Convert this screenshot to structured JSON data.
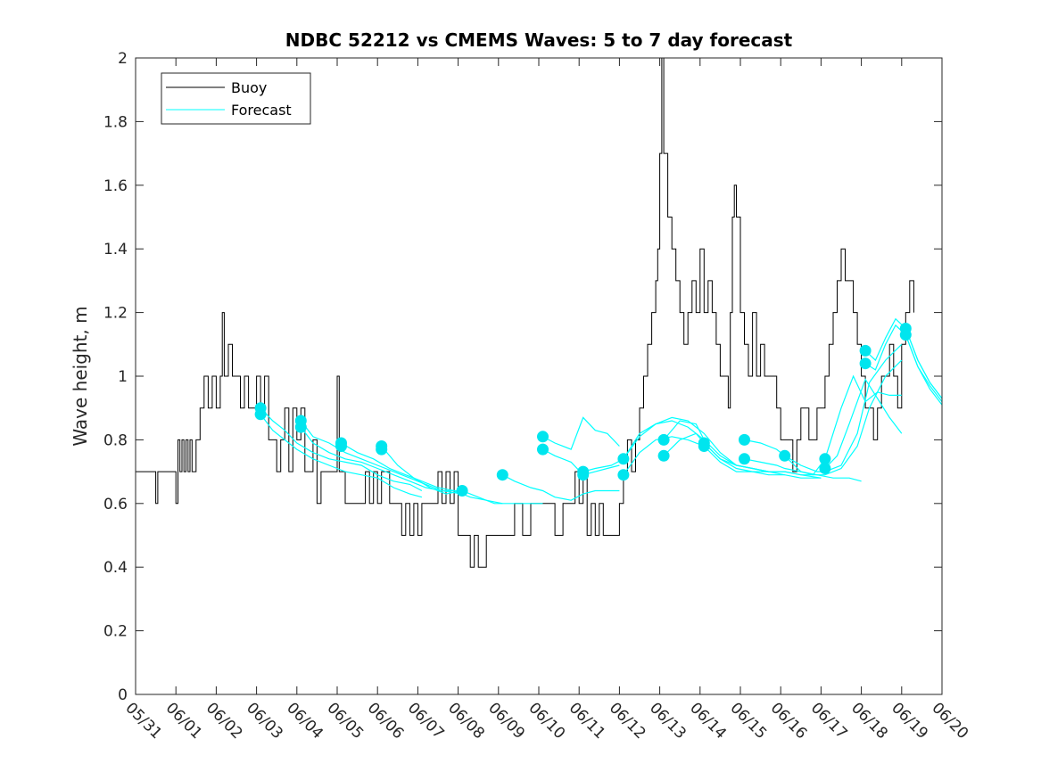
{
  "chart_data": {
    "type": "line",
    "title": "NDBC 52212 vs CMEMS Waves: 5 to 7 day forecast",
    "xlabel": "",
    "ylabel": "Wave height, m",
    "xlim": [
      0,
      20
    ],
    "ylim": [
      0,
      2
    ],
    "yticks": [
      0,
      0.2,
      0.4,
      0.6,
      0.8,
      1,
      1.2,
      1.4,
      1.6,
      1.8,
      2
    ],
    "ytick_labels": [
      "0",
      "0.2",
      "0.4",
      "0.6",
      "0.8",
      "1",
      "1.2",
      "1.4",
      "1.6",
      "1.8",
      "2"
    ],
    "xtick_labels": [
      "05/31",
      "06/01",
      "06/02",
      "06/03",
      "06/04",
      "06/05",
      "06/06",
      "06/07",
      "06/08",
      "06/09",
      "06/10",
      "06/11",
      "06/12",
      "06/13",
      "06/14",
      "06/15",
      "06/16",
      "06/17",
      "06/18",
      "06/19",
      "06/20"
    ],
    "grid": false,
    "legend": {
      "location": "top-left",
      "entries": [
        "Buoy",
        "Forecast"
      ]
    },
    "colors": {
      "buoy": "#000000",
      "forecast": "#00ffff",
      "marker": "#00e5ee"
    },
    "buoy": {
      "name": "Buoy",
      "x": [
        0,
        0.45,
        0.5,
        0.55,
        0.6,
        0.9,
        1.0,
        1.05,
        1.1,
        1.15,
        1.2,
        1.25,
        1.3,
        1.35,
        1.4,
        1.5,
        1.6,
        1.7,
        1.8,
        1.9,
        2.0,
        2.1,
        2.15,
        2.2,
        2.3,
        2.4,
        2.5,
        2.6,
        2.7,
        2.8,
        2.9,
        3.0,
        3.1,
        3.2,
        3.3,
        3.4,
        3.5,
        3.6,
        3.7,
        3.8,
        3.9,
        4.0,
        4.1,
        4.2,
        4.3,
        4.4,
        4.5,
        4.6,
        4.7,
        4.8,
        4.9,
        5.0,
        5.05,
        5.1,
        5.2,
        5.3,
        5.4,
        5.5,
        5.6,
        5.7,
        5.8,
        5.9,
        6.0,
        6.1,
        6.2,
        6.3,
        6.4,
        6.5,
        6.6,
        6.7,
        6.8,
        6.9,
        7.0,
        7.1,
        7.2,
        7.3,
        7.4,
        7.5,
        7.6,
        7.7,
        7.8,
        7.9,
        8.0,
        8.1,
        8.2,
        8.3,
        8.4,
        8.5,
        8.6,
        8.7,
        8.8,
        8.9,
        9.0,
        9.2,
        9.4,
        9.6,
        9.8,
        10.0,
        10.2,
        10.4,
        10.6,
        10.8,
        10.9,
        11.0,
        11.1,
        11.2,
        11.3,
        11.4,
        11.5,
        11.6,
        11.7,
        11.8,
        11.9,
        12.0,
        12.1,
        12.2,
        12.3,
        12.4,
        12.5,
        12.6,
        12.7,
        12.8,
        12.9,
        12.95,
        13.0,
        13.05,
        13.1,
        13.2,
        13.3,
        13.4,
        13.5,
        13.6,
        13.7,
        13.8,
        13.9,
        14.0,
        14.1,
        14.2,
        14.3,
        14.4,
        14.5,
        14.6,
        14.7,
        14.75,
        14.8,
        14.85,
        14.9,
        15.0,
        15.1,
        15.2,
        15.3,
        15.4,
        15.5,
        15.6,
        15.7,
        15.8,
        15.9,
        16.0,
        16.1,
        16.2,
        16.3,
        16.4,
        16.5,
        16.6,
        16.7,
        16.8,
        16.9,
        17.0,
        17.1,
        17.2,
        17.3,
        17.4,
        17.5,
        17.6,
        17.7,
        17.8,
        17.9,
        18.0,
        18.1,
        18.2,
        18.3,
        18.4,
        18.5,
        18.6,
        18.7,
        18.8,
        18.9,
        19.0,
        19.1,
        19.2,
        19.3
      ],
      "y": [
        0.7,
        0.7,
        0.6,
        0.7,
        0.7,
        0.7,
        0.6,
        0.8,
        0.7,
        0.8,
        0.7,
        0.8,
        0.7,
        0.8,
        0.7,
        0.8,
        0.9,
        1.0,
        0.9,
        1.0,
        0.9,
        1.0,
        1.2,
        1.0,
        1.1,
        1.0,
        1.0,
        0.9,
        1.0,
        0.9,
        0.9,
        1.0,
        0.9,
        1.0,
        0.8,
        0.8,
        0.7,
        0.8,
        0.9,
        0.7,
        0.9,
        0.8,
        0.9,
        0.7,
        0.7,
        0.8,
        0.6,
        0.7,
        0.7,
        0.7,
        0.7,
        1.0,
        0.7,
        0.7,
        0.6,
        0.6,
        0.6,
        0.6,
        0.6,
        0.7,
        0.6,
        0.7,
        0.6,
        0.7,
        0.7,
        0.6,
        0.6,
        0.6,
        0.5,
        0.6,
        0.5,
        0.6,
        0.5,
        0.6,
        0.6,
        0.6,
        0.6,
        0.7,
        0.6,
        0.7,
        0.6,
        0.7,
        0.5,
        0.5,
        0.5,
        0.4,
        0.5,
        0.4,
        0.4,
        0.5,
        0.5,
        0.5,
        0.5,
        0.5,
        0.6,
        0.5,
        0.6,
        0.6,
        0.6,
        0.5,
        0.6,
        0.6,
        0.7,
        0.6,
        0.7,
        0.5,
        0.6,
        0.5,
        0.6,
        0.5,
        0.5,
        0.5,
        0.5,
        0.6,
        0.7,
        0.8,
        0.7,
        0.8,
        0.9,
        1.0,
        1.1,
        1.2,
        1.3,
        1.4,
        1.7,
        2.0,
        1.7,
        1.5,
        1.4,
        1.3,
        1.2,
        1.1,
        1.2,
        1.3,
        1.2,
        1.4,
        1.2,
        1.3,
        1.2,
        1.1,
        1.0,
        1.0,
        0.9,
        1.2,
        1.5,
        1.6,
        1.5,
        1.2,
        1.1,
        1.0,
        1.2,
        1.0,
        1.1,
        1.0,
        1.0,
        1.0,
        0.9,
        0.8,
        0.8,
        0.8,
        0.7,
        0.8,
        0.9,
        0.9,
        0.8,
        0.8,
        0.9,
        0.9,
        1.0,
        1.1,
        1.2,
        1.3,
        1.4,
        1.3,
        1.3,
        1.2,
        1.1,
        1.0,
        0.9,
        0.9,
        0.8,
        0.9,
        1.0,
        1.0,
        1.1,
        1.0,
        0.9,
        1.1,
        1.2,
        1.3,
        1.2
      ]
    },
    "forecast_series": [
      {
        "x": [
          3.1,
          3.4,
          3.7,
          4.0,
          4.4,
          4.8,
          5.2,
          5.6,
          6.0,
          6.4,
          6.8,
          7.1
        ],
        "y": [
          0.9,
          0.86,
          0.83,
          0.79,
          0.76,
          0.74,
          0.73,
          0.72,
          0.69,
          0.67,
          0.66,
          0.64
        ]
      },
      {
        "x": [
          3.1,
          3.4,
          3.7,
          4.0,
          4.4,
          4.8,
          5.2,
          5.6,
          6.0,
          6.4,
          6.8,
          7.1
        ],
        "y": [
          0.88,
          0.83,
          0.8,
          0.77,
          0.74,
          0.72,
          0.7,
          0.69,
          0.68,
          0.65,
          0.63,
          0.62
        ]
      },
      {
        "x": [
          4.1,
          4.4,
          4.8,
          5.2,
          5.6,
          6.0,
          6.4,
          6.8,
          7.2,
          7.6,
          8.1
        ],
        "y": [
          0.86,
          0.81,
          0.79,
          0.76,
          0.74,
          0.72,
          0.7,
          0.68,
          0.66,
          0.64,
          0.64
        ]
      },
      {
        "x": [
          4.1,
          4.4,
          4.8,
          5.2,
          5.6,
          6.0,
          6.4,
          6.8,
          7.2,
          7.6,
          8.1
        ],
        "y": [
          0.84,
          0.79,
          0.76,
          0.74,
          0.73,
          0.71,
          0.69,
          0.67,
          0.65,
          0.64,
          0.63
        ]
      },
      {
        "x": [
          5.1,
          5.5,
          5.9,
          6.3,
          6.7,
          7.1,
          7.5,
          7.9,
          8.3,
          8.7,
          9.1
        ],
        "y": [
          0.79,
          0.76,
          0.74,
          0.71,
          0.69,
          0.67,
          0.65,
          0.64,
          0.62,
          0.61,
          0.6
        ]
      },
      {
        "x": [
          6.1,
          6.5,
          6.9,
          7.3,
          7.7,
          8.1,
          8.5,
          8.9,
          9.3,
          9.7,
          10.1
        ],
        "y": [
          0.78,
          0.72,
          0.68,
          0.65,
          0.63,
          0.64,
          0.62,
          0.6,
          0.6,
          0.6,
          0.6
        ]
      },
      {
        "x": [
          9.1,
          9.4,
          9.8,
          10.1,
          10.4,
          10.8,
          11.1,
          11.4,
          11.7,
          12.0
        ],
        "y": [
          0.69,
          0.67,
          0.65,
          0.64,
          0.62,
          0.61,
          0.63,
          0.64,
          0.64,
          0.64
        ]
      },
      {
        "x": [
          10.1,
          10.4,
          10.8,
          11.1,
          11.4,
          11.7,
          12.0
        ],
        "y": [
          0.81,
          0.79,
          0.77,
          0.87,
          0.83,
          0.82,
          0.78
        ]
      },
      {
        "x": [
          10.1,
          10.4,
          10.8,
          11.1,
          11.4,
          11.7,
          12.0
        ],
        "y": [
          0.77,
          0.75,
          0.73,
          0.69,
          0.7,
          0.71,
          0.72
        ]
      },
      {
        "x": [
          11.1,
          11.4,
          11.8,
          12.1,
          12.5,
          12.9,
          13.3,
          13.7,
          14.1
        ],
        "y": [
          0.7,
          0.71,
          0.72,
          0.74,
          0.82,
          0.85,
          0.86,
          0.84,
          0.8
        ]
      },
      {
        "x": [
          12.1,
          12.5,
          12.9,
          13.3,
          13.7,
          14.1,
          14.5,
          14.9,
          15.3,
          15.7,
          16.1
        ],
        "y": [
          0.74,
          0.81,
          0.85,
          0.87,
          0.86,
          0.82,
          0.76,
          0.72,
          0.71,
          0.7,
          0.7
        ]
      },
      {
        "x": [
          12.1,
          12.5,
          12.9,
          13.3,
          13.7,
          14.1,
          14.5,
          14.9,
          15.3,
          15.7,
          16.1
        ],
        "y": [
          0.69,
          0.76,
          0.8,
          0.81,
          0.8,
          0.78,
          0.73,
          0.7,
          0.7,
          0.69,
          0.69
        ]
      },
      {
        "x": [
          13.1,
          13.5,
          13.9,
          14.1,
          14.5,
          14.9,
          15.3,
          15.7,
          16.1,
          16.5,
          17.0
        ],
        "y": [
          0.8,
          0.86,
          0.85,
          0.8,
          0.75,
          0.72,
          0.71,
          0.7,
          0.69,
          0.68,
          0.68
        ]
      },
      {
        "x": [
          13.1,
          13.5,
          13.9,
          14.1,
          14.5,
          14.9,
          15.3,
          15.7,
          16.1,
          16.5,
          17.0
        ],
        "y": [
          0.75,
          0.8,
          0.82,
          0.79,
          0.74,
          0.72,
          0.71,
          0.7,
          0.7,
          0.69,
          0.68
        ]
      },
      {
        "x": [
          14.1,
          14.5,
          14.9,
          15.3,
          15.7,
          16.1,
          16.5,
          16.9,
          17.3,
          17.7,
          18.0
        ],
        "y": [
          0.79,
          0.74,
          0.71,
          0.7,
          0.7,
          0.7,
          0.69,
          0.69,
          0.68,
          0.68,
          0.67
        ]
      },
      {
        "x": [
          15.1,
          15.5,
          15.9,
          16.1,
          16.5,
          16.9,
          17.1,
          17.5,
          17.9,
          18.2,
          18.6,
          19.0
        ],
        "y": [
          0.8,
          0.79,
          0.77,
          0.75,
          0.72,
          0.7,
          0.7,
          0.72,
          0.82,
          0.98,
          1.05,
          1.1
        ]
      },
      {
        "x": [
          15.1,
          15.5,
          15.9,
          16.1,
          16.5,
          16.9,
          17.1,
          17.5,
          17.9,
          18.2,
          18.6,
          19.0
        ],
        "y": [
          0.74,
          0.73,
          0.72,
          0.71,
          0.7,
          0.69,
          0.69,
          0.71,
          0.78,
          0.9,
          1.0,
          1.05
        ]
      },
      {
        "x": [
          16.1,
          16.5,
          16.8,
          17.1,
          17.5,
          17.8,
          18.1,
          18.4,
          18.7,
          19.0
        ],
        "y": [
          0.75,
          0.7,
          0.69,
          0.74,
          0.9,
          1.0,
          0.92,
          0.95,
          0.94,
          0.94
        ]
      },
      {
        "x": [
          17.1,
          17.4,
          17.7,
          18.1,
          18.4,
          18.7,
          19.0
        ],
        "y": [
          0.71,
          0.75,
          0.85,
          0.99,
          0.93,
          0.87,
          0.82
        ]
      },
      {
        "x": [
          18.1,
          18.35,
          18.6,
          18.85,
          19.1,
          19.4,
          19.7,
          20.0
        ],
        "y": [
          1.08,
          1.05,
          1.12,
          1.18,
          1.15,
          1.05,
          0.98,
          0.93
        ]
      },
      {
        "x": [
          18.1,
          18.35,
          18.6,
          18.85,
          19.1,
          19.4,
          19.7,
          20.0
        ],
        "y": [
          1.04,
          1.02,
          1.1,
          1.16,
          1.13,
          1.03,
          0.96,
          0.91
        ]
      },
      {
        "x": [
          19.1,
          19.4,
          19.7,
          20.0
        ],
        "y": [
          1.15,
          1.05,
          0.98,
          0.93
        ]
      },
      {
        "x": [
          19.1,
          19.4,
          19.7,
          20.0
        ],
        "y": [
          1.13,
          1.03,
          0.97,
          0.92
        ]
      }
    ],
    "forecast_markers": [
      {
        "x": 3.1,
        "y": 0.9
      },
      {
        "x": 3.1,
        "y": 0.88
      },
      {
        "x": 4.1,
        "y": 0.86
      },
      {
        "x": 4.1,
        "y": 0.84
      },
      {
        "x": 5.1,
        "y": 0.79
      },
      {
        "x": 5.1,
        "y": 0.78
      },
      {
        "x": 6.1,
        "y": 0.78
      },
      {
        "x": 6.1,
        "y": 0.77
      },
      {
        "x": 8.1,
        "y": 0.64
      },
      {
        "x": 9.1,
        "y": 0.69
      },
      {
        "x": 10.1,
        "y": 0.81
      },
      {
        "x": 10.1,
        "y": 0.77
      },
      {
        "x": 11.1,
        "y": 0.7
      },
      {
        "x": 11.1,
        "y": 0.69
      },
      {
        "x": 12.1,
        "y": 0.74
      },
      {
        "x": 12.1,
        "y": 0.69
      },
      {
        "x": 13.1,
        "y": 0.8
      },
      {
        "x": 13.1,
        "y": 0.75
      },
      {
        "x": 14.1,
        "y": 0.79
      },
      {
        "x": 14.1,
        "y": 0.78
      },
      {
        "x": 15.1,
        "y": 0.8
      },
      {
        "x": 15.1,
        "y": 0.74
      },
      {
        "x": 16.1,
        "y": 0.75
      },
      {
        "x": 17.1,
        "y": 0.74
      },
      {
        "x": 17.1,
        "y": 0.71
      },
      {
        "x": 18.1,
        "y": 1.08
      },
      {
        "x": 18.1,
        "y": 1.04
      },
      {
        "x": 19.1,
        "y": 1.15
      },
      {
        "x": 19.1,
        "y": 1.13
      }
    ]
  }
}
